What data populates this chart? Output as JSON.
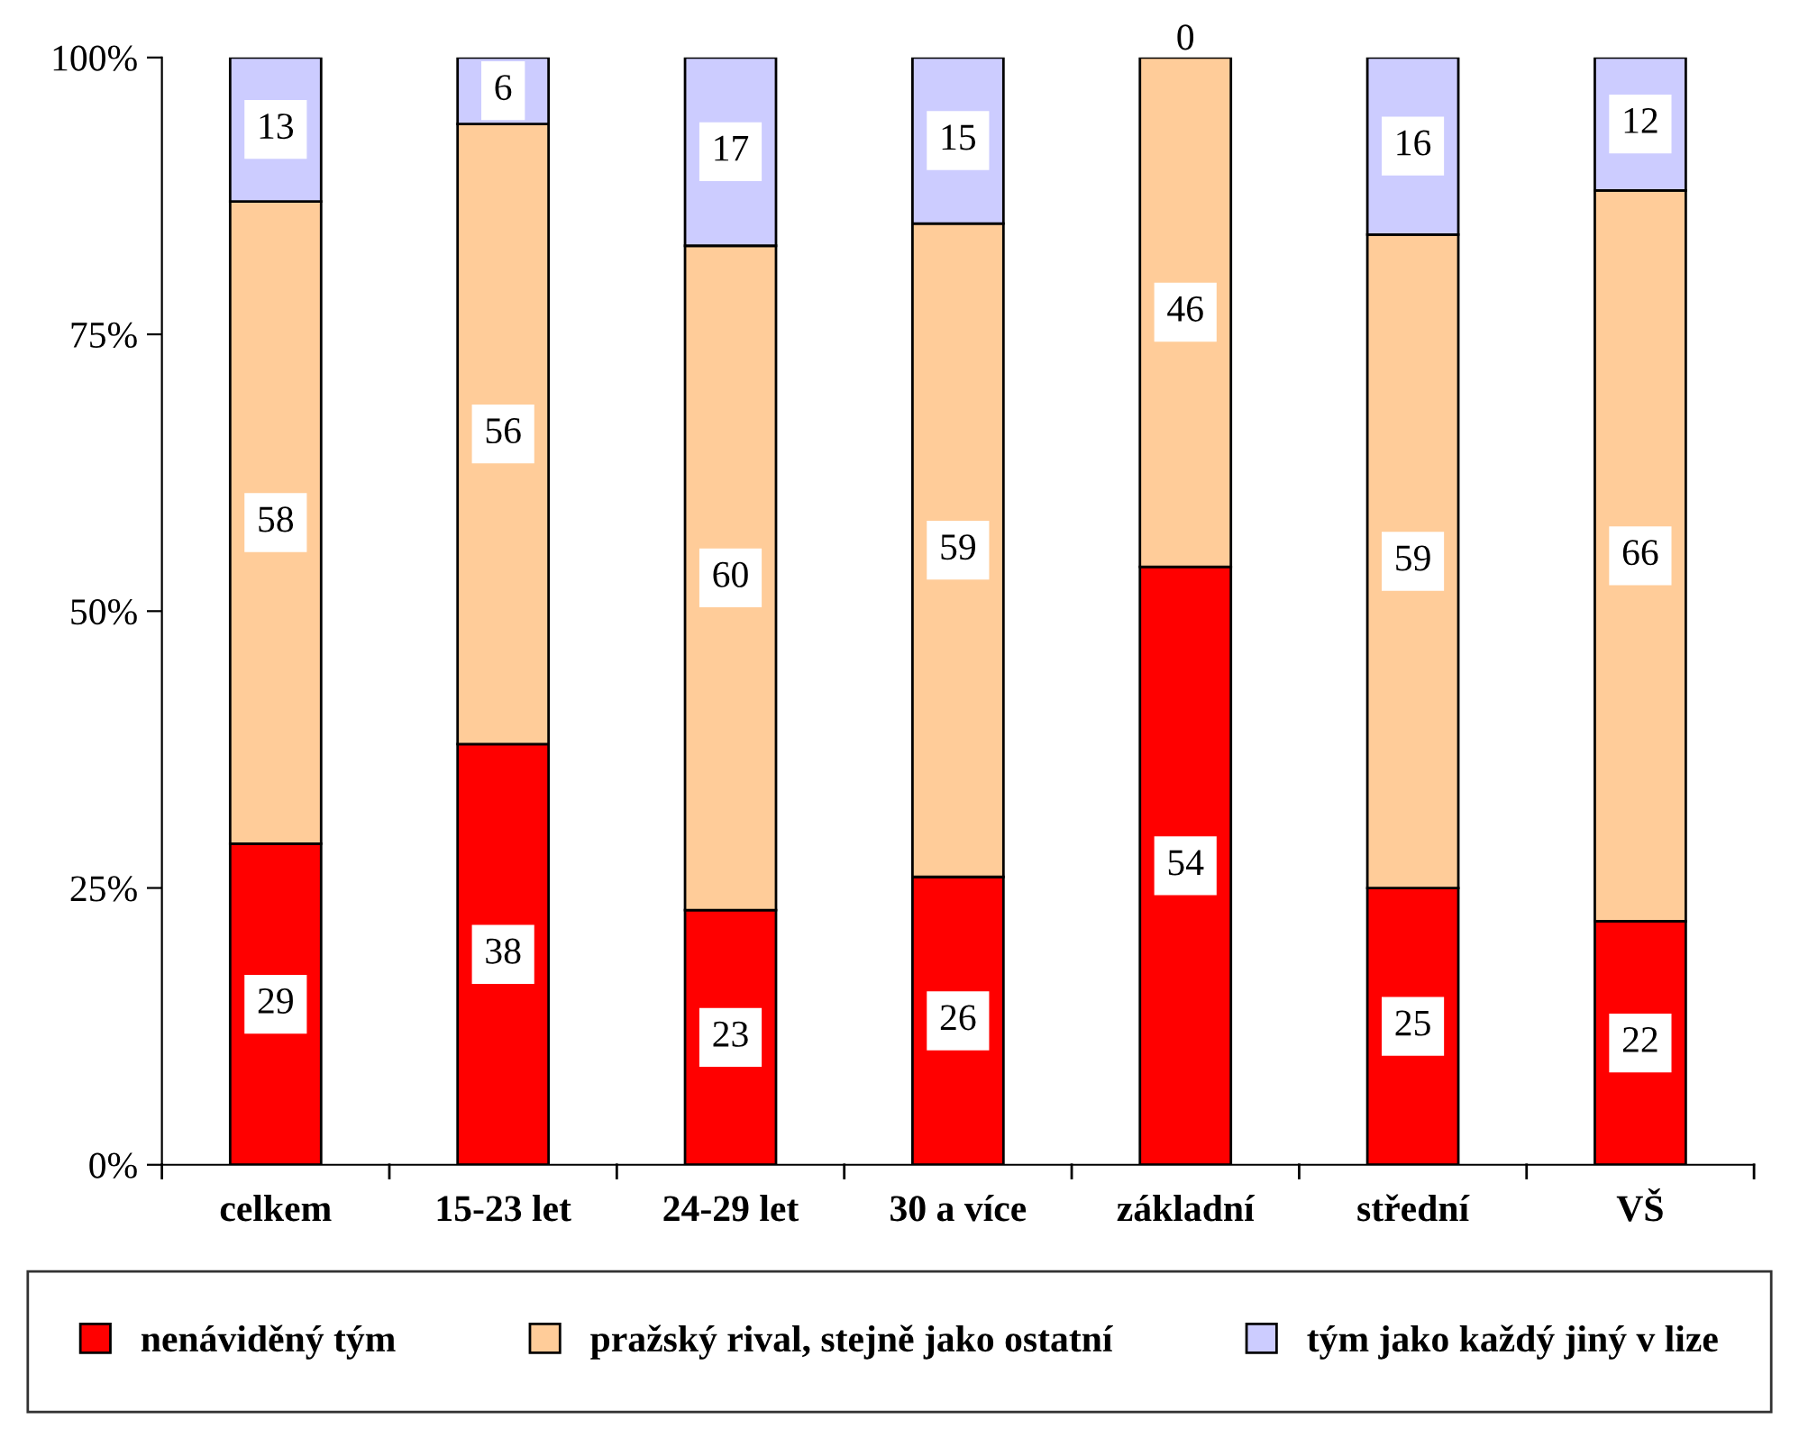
{
  "chart_data": {
    "type": "bar",
    "stacked": true,
    "categories": [
      "celkem",
      "15-23 let",
      "24-29 let",
      "30 a více",
      "základní",
      "střední",
      "VŠ"
    ],
    "series": [
      {
        "name": "nenáviděný tým",
        "color": "#ff0000",
        "values": [
          29,
          38,
          23,
          26,
          54,
          25,
          22
        ]
      },
      {
        "name": "pražský rival, stejně jako ostatní",
        "color": "#ffcc99",
        "values": [
          58,
          56,
          60,
          59,
          46,
          59,
          66
        ]
      },
      {
        "name": "tým jako každý jiný v lize",
        "color": "#ccccff",
        "values": [
          13,
          6,
          17,
          15,
          0,
          16,
          12
        ]
      }
    ],
    "ylim": [
      0,
      100
    ],
    "yticks": [
      {
        "value": 0,
        "label": "0%"
      },
      {
        "value": 25,
        "label": "25%"
      },
      {
        "value": 50,
        "label": "50%"
      },
      {
        "value": 75,
        "label": "75%"
      },
      {
        "value": 100,
        "label": "100%"
      }
    ],
    "data_labels": true,
    "grid": false,
    "legend": "bottom"
  }
}
